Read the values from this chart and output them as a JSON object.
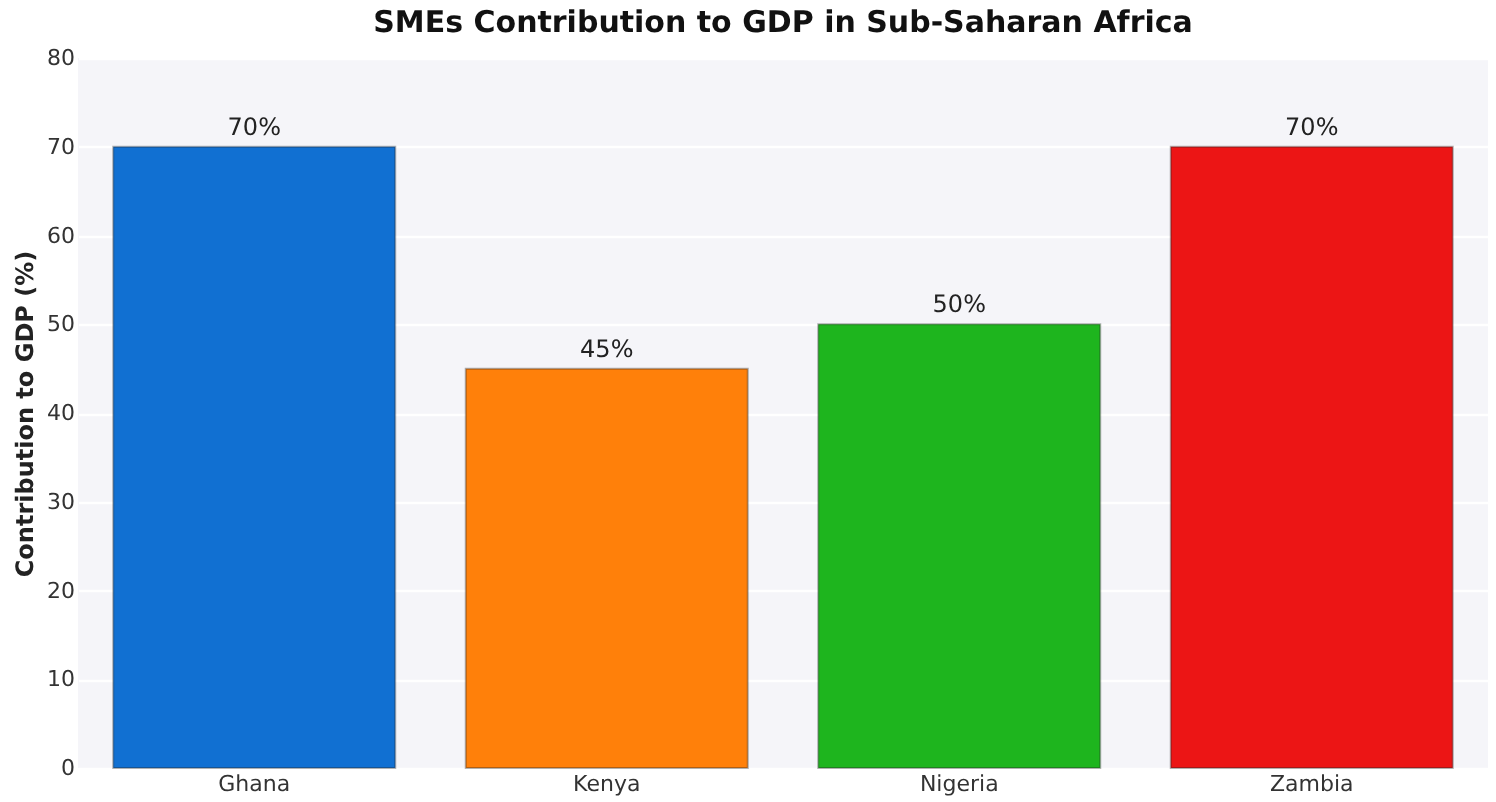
{
  "chart_data": {
    "type": "bar",
    "title": "SMEs Contribution to GDP in Sub-Saharan Africa",
    "ylabel": "Contribution to GDP (%)",
    "categories": [
      "Ghana",
      "Kenya",
      "Nigeria",
      "Zambia"
    ],
    "values": [
      70,
      45,
      50,
      70
    ],
    "colors": [
      "#1170d2",
      "#ff800a",
      "#1eb51e",
      "#ec1515"
    ],
    "value_labels": [
      "70%",
      "45%",
      "50%",
      "70%"
    ],
    "ylim": [
      0,
      80
    ],
    "yticks": [
      0,
      10,
      20,
      30,
      40,
      50,
      60,
      70,
      80
    ],
    "grid": "y"
  }
}
